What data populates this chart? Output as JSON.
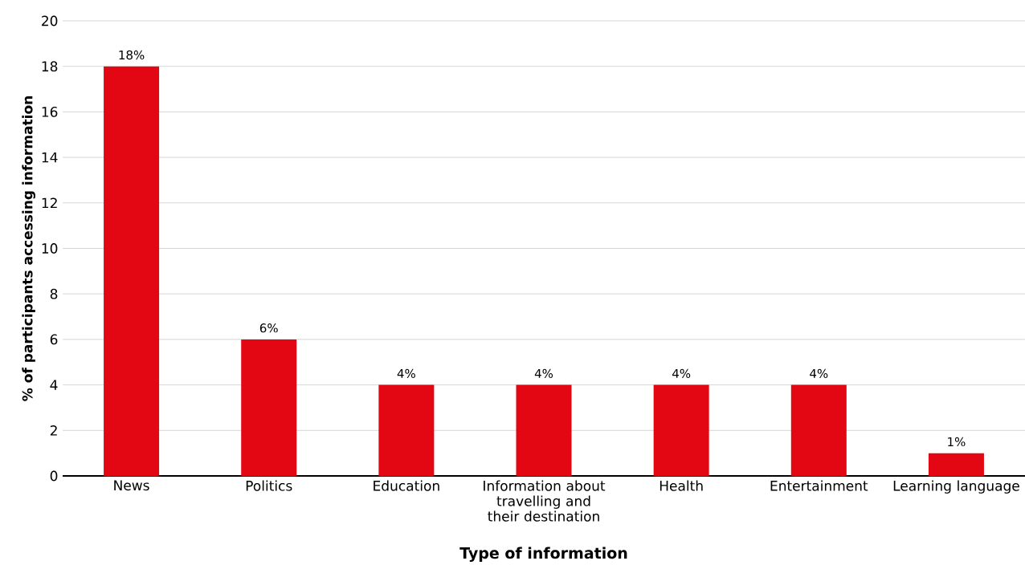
{
  "chart_data": {
    "type": "bar",
    "xlabel": "Type of information",
    "ylabel": "% of participants accessing information",
    "categories": [
      "News",
      "Politics",
      "Education",
      "Information about travelling and their destination",
      "Health",
      "Entertainment",
      "Learning language"
    ],
    "values": [
      18,
      6,
      4,
      4,
      4,
      4,
      1
    ],
    "color": "#e30613",
    "value_labels": [
      "18%",
      "6%",
      "4%",
      "4%",
      "4%",
      "4%",
      "1%"
    ],
    "ylim": [
      0,
      20
    ],
    "yticks": [
      0,
      2,
      4,
      6,
      8,
      10,
      12,
      14,
      16,
      18,
      20
    ],
    "grid": "y"
  }
}
